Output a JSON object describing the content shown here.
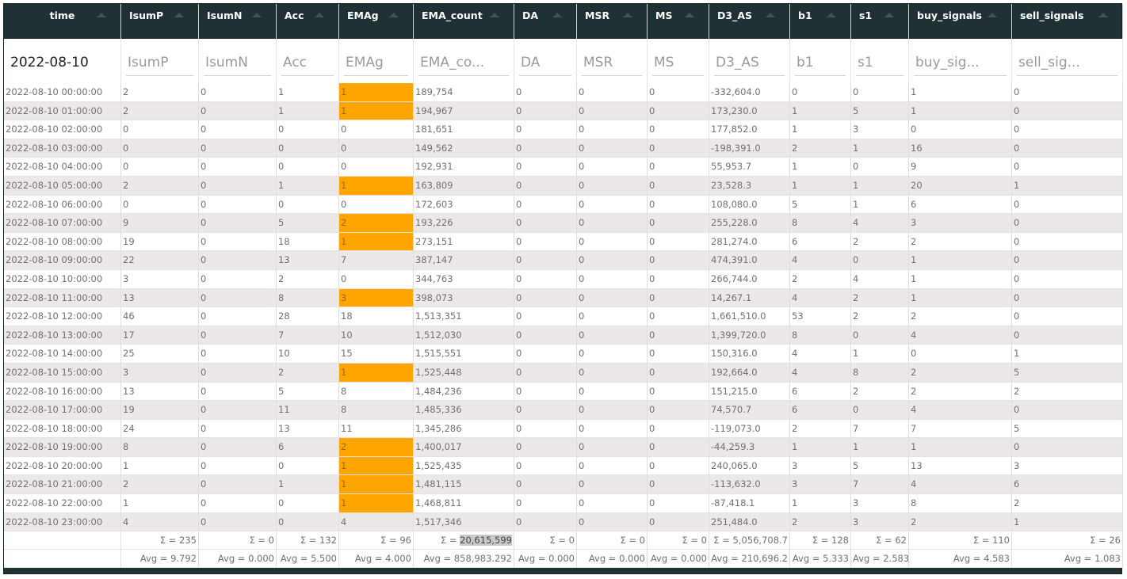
{
  "columns": [
    {
      "key": "time",
      "label": "time",
      "filter_value": "2022-08-10",
      "placeholder": ""
    },
    {
      "key": "IsumP",
      "label": "IsumP",
      "filter_value": "",
      "placeholder": "IsumP"
    },
    {
      "key": "IsumN",
      "label": "IsumN",
      "filter_value": "",
      "placeholder": "IsumN"
    },
    {
      "key": "Acc",
      "label": "Acc",
      "filter_value": "",
      "placeholder": "Acc"
    },
    {
      "key": "EMAg",
      "label": "EMAg",
      "filter_value": "",
      "placeholder": "EMAg"
    },
    {
      "key": "EMA_count",
      "label": "EMA_count",
      "filter_value": "",
      "placeholder": "EMA_co..."
    },
    {
      "key": "DA",
      "label": "DA",
      "filter_value": "",
      "placeholder": "DA"
    },
    {
      "key": "MSR",
      "label": "MSR",
      "filter_value": "",
      "placeholder": "MSR"
    },
    {
      "key": "MS",
      "label": "MS",
      "filter_value": "",
      "placeholder": "MS"
    },
    {
      "key": "D3_AS",
      "label": "D3_AS",
      "filter_value": "",
      "placeholder": "D3_AS"
    },
    {
      "key": "b1",
      "label": "b1",
      "filter_value": "",
      "placeholder": "b1"
    },
    {
      "key": "s1",
      "label": "s1",
      "filter_value": "",
      "placeholder": "s1"
    },
    {
      "key": "buy_signals",
      "label": "buy_signals",
      "filter_value": "",
      "placeholder": "buy_sig..."
    },
    {
      "key": "sell_signals",
      "label": "sell_signals",
      "filter_value": "",
      "placeholder": "sell_sig..."
    }
  ],
  "highlight_color": "#ffa500",
  "header_bg": "#1f3135",
  "rows": [
    {
      "v": [
        "2022-08-10 00:00:00",
        "2",
        "0",
        "1",
        "1",
        "189,754",
        "0",
        "0",
        "0",
        "-332,604.0",
        "0",
        "0",
        "1",
        "0"
      ],
      "hl": true
    },
    {
      "v": [
        "2022-08-10 01:00:00",
        "2",
        "0",
        "1",
        "1",
        "194,967",
        "0",
        "0",
        "0",
        "173,230.0",
        "1",
        "5",
        "1",
        "0"
      ],
      "hl": true
    },
    {
      "v": [
        "2022-08-10 02:00:00",
        "0",
        "0",
        "0",
        "0",
        "181,651",
        "0",
        "0",
        "0",
        "177,852.0",
        "1",
        "3",
        "0",
        "0"
      ],
      "hl": false
    },
    {
      "v": [
        "2022-08-10 03:00:00",
        "0",
        "0",
        "0",
        "0",
        "149,562",
        "0",
        "0",
        "0",
        "-198,391.0",
        "2",
        "1",
        "16",
        "0"
      ],
      "hl": false
    },
    {
      "v": [
        "2022-08-10 04:00:00",
        "0",
        "0",
        "0",
        "0",
        "192,931",
        "0",
        "0",
        "0",
        "55,953.7",
        "1",
        "0",
        "9",
        "0"
      ],
      "hl": false
    },
    {
      "v": [
        "2022-08-10 05:00:00",
        "2",
        "0",
        "1",
        "1",
        "163,809",
        "0",
        "0",
        "0",
        "23,528.3",
        "1",
        "1",
        "20",
        "1"
      ],
      "hl": true
    },
    {
      "v": [
        "2022-08-10 06:00:00",
        "0",
        "0",
        "0",
        "0",
        "172,603",
        "0",
        "0",
        "0",
        "108,080.0",
        "5",
        "1",
        "6",
        "0"
      ],
      "hl": false
    },
    {
      "v": [
        "2022-08-10 07:00:00",
        "9",
        "0",
        "5",
        "2",
        "193,226",
        "0",
        "0",
        "0",
        "255,228.0",
        "8",
        "4",
        "3",
        "0"
      ],
      "hl": true
    },
    {
      "v": [
        "2022-08-10 08:00:00",
        "19",
        "0",
        "18",
        "1",
        "273,151",
        "0",
        "0",
        "0",
        "281,274.0",
        "6",
        "2",
        "2",
        "0"
      ],
      "hl": true
    },
    {
      "v": [
        "2022-08-10 09:00:00",
        "22",
        "0",
        "13",
        "7",
        "387,147",
        "0",
        "0",
        "0",
        "474,391.0",
        "4",
        "0",
        "1",
        "0"
      ],
      "hl": false
    },
    {
      "v": [
        "2022-08-10 10:00:00",
        "3",
        "0",
        "2",
        "0",
        "344,763",
        "0",
        "0",
        "0",
        "266,744.0",
        "2",
        "4",
        "1",
        "0"
      ],
      "hl": false
    },
    {
      "v": [
        "2022-08-10 11:00:00",
        "13",
        "0",
        "8",
        "3",
        "398,073",
        "0",
        "0",
        "0",
        "14,267.1",
        "4",
        "2",
        "1",
        "0"
      ],
      "hl": true
    },
    {
      "v": [
        "2022-08-10 12:00:00",
        "46",
        "0",
        "28",
        "18",
        "1,513,351",
        "0",
        "0",
        "0",
        "1,661,510.0",
        "53",
        "2",
        "2",
        "0"
      ],
      "hl": false
    },
    {
      "v": [
        "2022-08-10 13:00:00",
        "17",
        "0",
        "7",
        "10",
        "1,512,030",
        "0",
        "0",
        "0",
        "1,399,720.0",
        "8",
        "0",
        "4",
        "0"
      ],
      "hl": false
    },
    {
      "v": [
        "2022-08-10 14:00:00",
        "25",
        "0",
        "10",
        "15",
        "1,515,551",
        "0",
        "0",
        "0",
        "150,316.0",
        "4",
        "1",
        "0",
        "1"
      ],
      "hl": false
    },
    {
      "v": [
        "2022-08-10 15:00:00",
        "3",
        "0",
        "2",
        "1",
        "1,525,448",
        "0",
        "0",
        "0",
        "192,664.0",
        "4",
        "8",
        "2",
        "5"
      ],
      "hl": true
    },
    {
      "v": [
        "2022-08-10 16:00:00",
        "13",
        "0",
        "5",
        "8",
        "1,484,236",
        "0",
        "0",
        "0",
        "151,215.0",
        "6",
        "2",
        "2",
        "2"
      ],
      "hl": false
    },
    {
      "v": [
        "2022-08-10 17:00:00",
        "19",
        "0",
        "11",
        "8",
        "1,485,336",
        "0",
        "0",
        "0",
        "74,570.7",
        "6",
        "0",
        "4",
        "0"
      ],
      "hl": false
    },
    {
      "v": [
        "2022-08-10 18:00:00",
        "24",
        "0",
        "13",
        "11",
        "1,345,286",
        "0",
        "0",
        "0",
        "-119,073.0",
        "2",
        "7",
        "7",
        "5"
      ],
      "hl": false
    },
    {
      "v": [
        "2022-08-10 19:00:00",
        "8",
        "0",
        "6",
        "2",
        "1,400,017",
        "0",
        "0",
        "0",
        "-44,259.3",
        "1",
        "1",
        "1",
        "0"
      ],
      "hl": true
    },
    {
      "v": [
        "2022-08-10 20:00:00",
        "1",
        "0",
        "0",
        "1",
        "1,525,435",
        "0",
        "0",
        "0",
        "240,065.0",
        "3",
        "5",
        "13",
        "3"
      ],
      "hl": true
    },
    {
      "v": [
        "2022-08-10 21:00:00",
        "2",
        "0",
        "1",
        "1",
        "1,481,115",
        "0",
        "0",
        "0",
        "-113,632.0",
        "3",
        "7",
        "4",
        "6"
      ],
      "hl": true
    },
    {
      "v": [
        "2022-08-10 22:00:00",
        "1",
        "0",
        "0",
        "1",
        "1,468,811",
        "0",
        "0",
        "0",
        "-87,418.1",
        "1",
        "3",
        "8",
        "2"
      ],
      "hl": true
    },
    {
      "v": [
        "2022-08-10 23:00:00",
        "4",
        "0",
        "0",
        "4",
        "1,517,346",
        "0",
        "0",
        "0",
        "251,484.0",
        "2",
        "3",
        "2",
        "1"
      ],
      "hl": false
    }
  ],
  "sums": [
    "",
    "Σ = 235",
    "Σ = 0",
    "Σ = 132",
    "Σ = 96",
    "Σ = 20,615,599",
    "Σ = 0",
    "Σ = 0",
    "Σ = 0",
    "Σ = 5,056,708.7",
    "Σ = 128",
    "Σ = 62",
    "Σ = 110",
    "Σ = 26"
  ],
  "avgs": [
    "",
    "Avg = 9.792",
    "Avg = 0.000",
    "Avg = 5.500",
    "Avg = 4.000",
    "Avg = 858,983.292",
    "Avg = 0.000",
    "Avg = 0.000",
    "Avg = 0.000",
    "Avg = 210,696.2",
    "Avg = 5.333",
    "Avg = 2.583",
    "Avg = 4.583",
    "Avg = 1.083"
  ]
}
